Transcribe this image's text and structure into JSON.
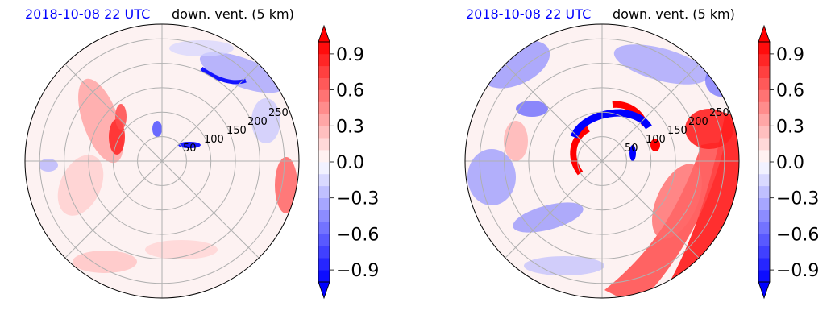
{
  "colors": {
    "negative": "#0000ff",
    "positive": "#ff0000",
    "grid": "#b0b0b0",
    "outline": "#000000",
    "title_left": "#0000ff",
    "title_right": "#000000"
  },
  "chart_data": [
    {
      "type": "heatmap",
      "projection": "polar",
      "title_left": "2018-10-08 22 UTC",
      "title_right": "down. vent. (5 km)",
      "radial_ticks": [
        "50",
        "100",
        "150",
        "200",
        "250"
      ],
      "radial_values": [
        50,
        100,
        150,
        200,
        250
      ],
      "rmax": 280,
      "theta_grid_deg": [
        0,
        45,
        90,
        135,
        180,
        225,
        270,
        315
      ],
      "grid": true,
      "colorbar": {
        "range": [
          -1.0,
          1.0
        ],
        "step": 0.1,
        "ticks": [
          -0.9,
          -0.6,
          -0.3,
          0.0,
          0.3,
          0.6,
          0.9
        ],
        "tick_labels": [
          "−0.9",
          "−0.6",
          "−0.3",
          "0.0",
          "0.3",
          "0.6",
          "0.9"
        ],
        "extend": "both",
        "cmap": "bwr"
      }
    },
    {
      "type": "heatmap",
      "projection": "polar",
      "title_left": "2018-10-08 22 UTC",
      "title_right": "down. vent. (5 km)",
      "radial_ticks": [
        "50",
        "100",
        "150",
        "200",
        "250"
      ],
      "radial_values": [
        50,
        100,
        150,
        200,
        250
      ],
      "rmax": 280,
      "theta_grid_deg": [
        0,
        45,
        90,
        135,
        180,
        225,
        270,
        315
      ],
      "grid": true,
      "colorbar": {
        "range": [
          -1.0,
          1.0
        ],
        "step": 0.1,
        "ticks": [
          -0.9,
          -0.6,
          -0.3,
          0.0,
          0.3,
          0.6,
          0.9
        ],
        "tick_labels": [
          "−0.9",
          "−0.6",
          "−0.3",
          "0.0",
          "0.3",
          "0.6",
          "0.9"
        ],
        "extend": "both",
        "cmap": "bwr"
      }
    }
  ]
}
